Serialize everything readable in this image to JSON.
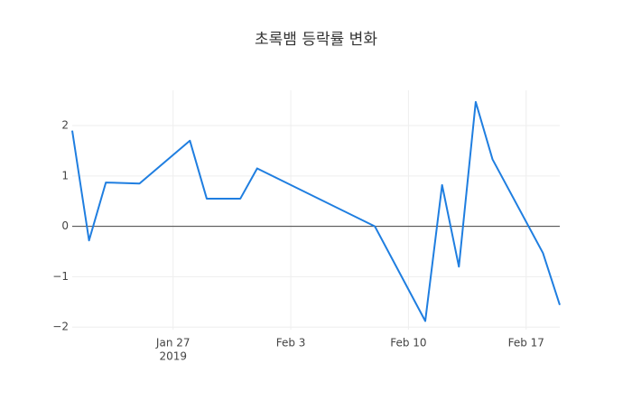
{
  "chart_data": {
    "type": "line",
    "title": "초록뱀 등락률 변화",
    "x": [
      "2019-01-21",
      "2019-01-22",
      "2019-01-23",
      "2019-01-25",
      "2019-01-28",
      "2019-01-29",
      "2019-01-31",
      "2019-02-01",
      "2019-02-08",
      "2019-02-11",
      "2019-02-12",
      "2019-02-13",
      "2019-02-14",
      "2019-02-15",
      "2019-02-18",
      "2019-02-19"
    ],
    "series": [
      {
        "color": "#1f7ee0",
        "values": [
          1.9,
          -0.28,
          0.87,
          0.85,
          1.7,
          0.55,
          0.55,
          1.15,
          0.0,
          -1.88,
          0.82,
          -0.8,
          2.47,
          1.33,
          -0.53,
          -1.56
        ]
      }
    ],
    "xlim": [
      "2019-01-21",
      "2019-02-19"
    ],
    "xticks": [
      {
        "value": "2019-01-27",
        "label": "Jan 27"
      },
      {
        "value": "2019-02-03",
        "label": "Feb 3"
      },
      {
        "value": "2019-02-10",
        "label": "Feb 10"
      },
      {
        "value": "2019-02-17",
        "label": "Feb 17"
      }
    ],
    "x_year": "2019",
    "ylim": [
      -2.05,
      2.7
    ],
    "yticks": [
      {
        "value": -2,
        "label": "−2"
      },
      {
        "value": -1,
        "label": "−1"
      },
      0,
      1,
      2
    ],
    "grid": true,
    "zero_line": true
  }
}
